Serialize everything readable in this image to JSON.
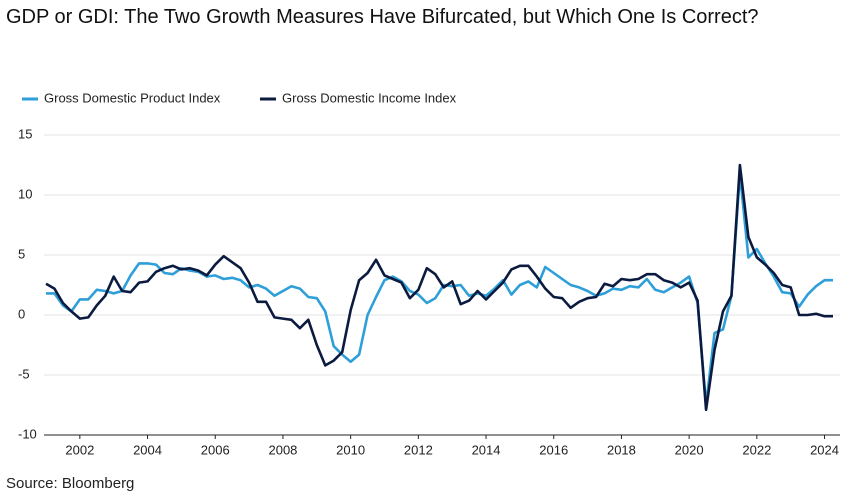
{
  "chart_data": {
    "type": "line",
    "title": "GDP or GDI: The Two Growth Measures Have Bifurcated, but Which One Is Correct?",
    "source": "Source: Bloomberg",
    "x": [
      2001,
      2001.25,
      2001.5,
      2001.75,
      2002,
      2002.25,
      2002.5,
      2002.75,
      2003,
      2003.25,
      2003.5,
      2003.75,
      2004,
      2004.25,
      2004.5,
      2004.75,
      2005,
      2005.25,
      2005.5,
      2005.75,
      2006,
      2006.25,
      2006.5,
      2006.75,
      2007,
      2007.25,
      2007.5,
      2007.75,
      2008,
      2008.25,
      2008.5,
      2008.75,
      2009,
      2009.25,
      2009.5,
      2009.75,
      2010,
      2010.25,
      2010.5,
      2010.75,
      2011,
      2011.25,
      2011.5,
      2011.75,
      2012,
      2012.25,
      2012.5,
      2012.75,
      2013,
      2013.25,
      2013.5,
      2013.75,
      2014,
      2014.25,
      2014.5,
      2014.75,
      2015,
      2015.25,
      2015.5,
      2015.75,
      2016,
      2016.25,
      2016.5,
      2016.75,
      2017,
      2017.25,
      2017.5,
      2017.75,
      2018,
      2018.25,
      2018.5,
      2018.75,
      2019,
      2019.25,
      2019.5,
      2019.75,
      2020,
      2020.25,
      2020.5,
      2020.75,
      2021,
      2021.25,
      2021.5,
      2021.75,
      2022,
      2022.25,
      2022.5,
      2022.75,
      2023,
      2023.25,
      2023.5,
      2023.75,
      2024,
      2024.25
    ],
    "series": [
      {
        "name": "Gross Domestic Product Index",
        "color": "#2e9fd8",
        "values": [
          1.8,
          1.8,
          0.8,
          0.3,
          1.3,
          1.3,
          2.1,
          2.0,
          1.8,
          2.0,
          3.3,
          4.3,
          4.3,
          4.2,
          3.5,
          3.4,
          3.9,
          3.7,
          3.6,
          3.2,
          3.3,
          3.0,
          3.1,
          2.9,
          2.3,
          2.5,
          2.2,
          1.6,
          2.0,
          2.4,
          2.2,
          1.5,
          1.4,
          0.3,
          -2.6,
          -3.3,
          -3.9,
          -3.3,
          0.0,
          1.5,
          2.9,
          3.2,
          2.8,
          2.0,
          1.7,
          1.0,
          1.4,
          2.5,
          2.4,
          2.5,
          1.6,
          1.8,
          1.6,
          2.2,
          2.9,
          1.7,
          2.5,
          2.8,
          2.3,
          4.0,
          3.5,
          3.0,
          2.5,
          2.3,
          2.0,
          1.6,
          1.8,
          2.2,
          2.1,
          2.4,
          2.3,
          3.0,
          2.1,
          1.9,
          2.3,
          2.7,
          3.2,
          1.0,
          -7.5,
          -1.5,
          -1.2,
          1.6,
          11.8,
          4.8,
          5.5,
          4.3,
          3.2,
          1.9,
          1.8,
          0.7,
          1.7,
          2.4,
          2.9,
          2.9
        ]
      },
      {
        "name": "Gross Domestic Income Index",
        "color": "#0b1a3f",
        "values": [
          2.6,
          2.2,
          1.0,
          0.3,
          -0.3,
          -0.2,
          0.8,
          1.6,
          3.2,
          2.0,
          1.9,
          2.7,
          2.8,
          3.6,
          3.9,
          4.1,
          3.8,
          3.9,
          3.7,
          3.3,
          4.2,
          4.9,
          4.4,
          3.9,
          2.7,
          1.1,
          1.1,
          -0.2,
          -0.3,
          -0.4,
          -1.1,
          -0.4,
          -2.5,
          -4.2,
          -3.8,
          -3.1,
          0.4,
          2.9,
          3.5,
          4.6,
          3.3,
          3.0,
          2.7,
          1.4,
          2.1,
          3.9,
          3.4,
          2.3,
          2.8,
          0.9,
          1.2,
          2.0,
          1.3,
          2.0,
          2.7,
          3.8,
          4.1,
          4.1,
          3.2,
          2.2,
          1.5,
          1.4,
          0.6,
          1.1,
          1.4,
          1.5,
          2.6,
          2.4,
          3.0,
          2.9,
          3.0,
          3.4,
          3.4,
          2.9,
          2.7,
          2.3,
          2.7,
          1.2,
          -7.9,
          -2.9,
          0.3,
          1.6,
          12.5,
          6.5,
          4.8,
          4.2,
          3.5,
          2.5,
          2.3,
          0.0,
          0.0,
          0.1,
          -0.1,
          -0.1
        ]
      }
    ],
    "xlim": [
      2001,
      2024.25
    ],
    "xticks": [
      2002,
      2004,
      2006,
      2008,
      2010,
      2012,
      2014,
      2016,
      2018,
      2020,
      2022,
      2024
    ],
    "ylim": [
      -10,
      15
    ],
    "yticks": [
      -10,
      -5,
      0,
      5,
      10,
      15
    ],
    "grid": true
  }
}
